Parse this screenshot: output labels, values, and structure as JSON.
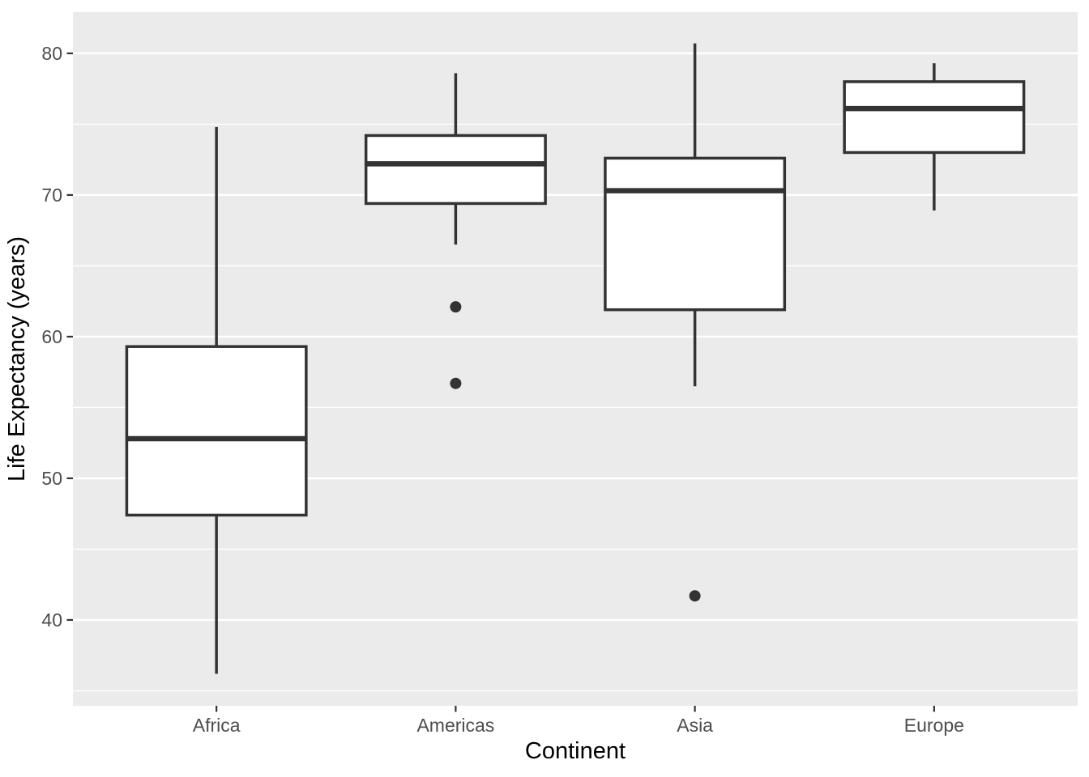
{
  "chart_data": {
    "type": "boxplot",
    "title": "",
    "xlabel": "Continent",
    "ylabel": "Life Expectancy (years)",
    "categories": [
      "Africa",
      "Americas",
      "Asia",
      "Europe"
    ],
    "series": [
      {
        "name": "Africa",
        "min": 36.2,
        "q1": 47.4,
        "median": 52.8,
        "q3": 59.3,
        "max": 74.8,
        "outliers": []
      },
      {
        "name": "Americas",
        "min": 66.5,
        "q1": 69.4,
        "median": 72.2,
        "q3": 74.2,
        "max": 78.6,
        "outliers": [
          62.1,
          56.7
        ]
      },
      {
        "name": "Asia",
        "min": 56.5,
        "q1": 61.9,
        "median": 70.3,
        "q3": 72.6,
        "max": 80.7,
        "outliers": [
          41.7
        ]
      },
      {
        "name": "Europe",
        "min": 68.9,
        "q1": 73.0,
        "median": 76.1,
        "q3": 78.0,
        "max": 79.3,
        "outliers": []
      }
    ],
    "y_ticks": [
      40,
      50,
      60,
      70,
      80
    ],
    "y_minor_ticks": [
      35,
      45,
      55,
      65,
      75
    ],
    "ylim": [
      33.94,
      82.91
    ],
    "grid": "major-and-minor-horizontal",
    "legend": "none",
    "colors": {
      "panel_background": "#EBEBEB",
      "gridline": "#FFFFFF",
      "box_stroke": "#333333",
      "box_fill": "#FFFFFF",
      "outlier": "#333333",
      "tick_mark": "#333333",
      "tick_text": "#4D4D4D",
      "title_text": "#000000"
    }
  }
}
